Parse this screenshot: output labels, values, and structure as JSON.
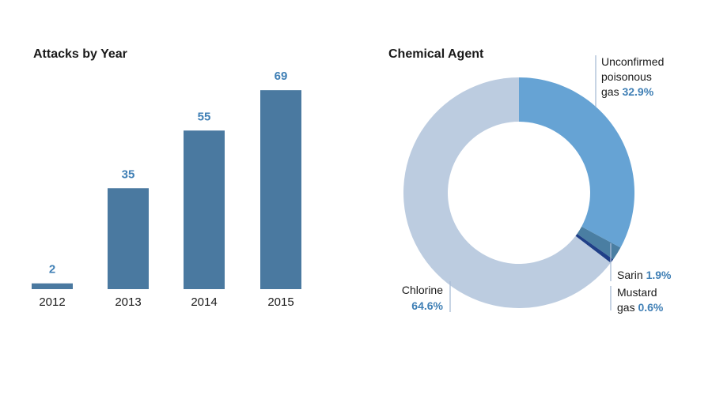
{
  "chart_data": [
    {
      "type": "bar",
      "title": "Attacks by Year",
      "categories": [
        "2012",
        "2013",
        "2014",
        "2015"
      ],
      "values": [
        2,
        35,
        55,
        69
      ],
      "colors": {
        "bar": "#4a79a0",
        "value_label": "#3f7fb5",
        "tick_label": "#1a1a1a"
      }
    },
    {
      "type": "pie",
      "style": "donut",
      "title": "Chemical Agent",
      "slices": [
        {
          "label_lines": [
            "Unconfirmed",
            "poisonous",
            "gas"
          ],
          "value": 32.9,
          "value_text": "32.9%",
          "color": "#66a3d4"
        },
        {
          "label_lines": [
            "Sarin"
          ],
          "value": 1.9,
          "value_text": "1.9%",
          "color": "#4a7ea2"
        },
        {
          "label_lines": [
            "Mustard",
            "gas"
          ],
          "value": 0.6,
          "value_text": "0.6%",
          "color": "#1f3f87"
        },
        {
          "label_lines": [
            "Chlorine"
          ],
          "value": 64.6,
          "value_text": "64.6%",
          "color": "#bccce0"
        }
      ]
    }
  ]
}
